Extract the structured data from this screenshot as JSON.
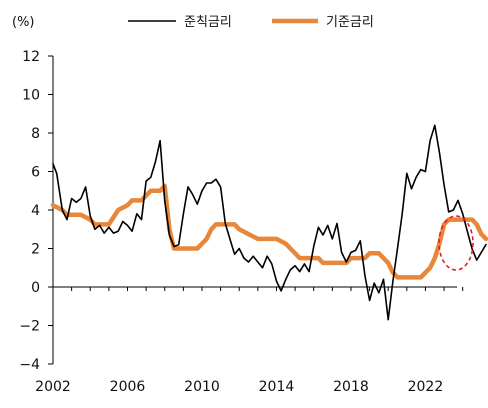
{
  "chart_data": {
    "type": "line",
    "unit_label": "(%)",
    "title": "",
    "xlabel": "",
    "ylabel": "",
    "ylim": [
      -4,
      12
    ],
    "yticks": [
      -4,
      -2,
      0,
      2,
      4,
      6,
      8,
      10,
      12
    ],
    "xlim": [
      2002,
      2024.5
    ],
    "xticks": [
      2002,
      2006,
      2010,
      2014,
      2018,
      2022
    ],
    "grid": false,
    "legend_position": "top",
    "annotation": "red dashed circle highlighting the latest values (2023-2024)",
    "series": [
      {
        "name": "준칙금리",
        "color": "#000000",
        "points": [
          [
            2002.0,
            6.4
          ],
          [
            2002.2,
            5.9
          ],
          [
            2002.5,
            4.0
          ],
          [
            2002.75,
            3.5
          ],
          [
            2003.0,
            4.6
          ],
          [
            2003.25,
            4.4
          ],
          [
            2003.5,
            4.6
          ],
          [
            2003.75,
            5.2
          ],
          [
            2004.0,
            3.7
          ],
          [
            2004.25,
            3.0
          ],
          [
            2004.5,
            3.2
          ],
          [
            2004.75,
            2.8
          ],
          [
            2005.0,
            3.1
          ],
          [
            2005.25,
            2.8
          ],
          [
            2005.5,
            2.9
          ],
          [
            2005.75,
            3.4
          ],
          [
            2006.0,
            3.2
          ],
          [
            2006.25,
            2.9
          ],
          [
            2006.5,
            3.8
          ],
          [
            2006.75,
            3.5
          ],
          [
            2007.0,
            5.5
          ],
          [
            2007.25,
            5.7
          ],
          [
            2007.5,
            6.5
          ],
          [
            2007.75,
            7.6
          ],
          [
            2008.0,
            4.5
          ],
          [
            2008.25,
            2.7
          ],
          [
            2008.5,
            2.1
          ],
          [
            2008.75,
            2.2
          ],
          [
            2009.0,
            3.8
          ],
          [
            2009.25,
            5.2
          ],
          [
            2009.5,
            4.8
          ],
          [
            2009.75,
            4.3
          ],
          [
            2010.0,
            5.0
          ],
          [
            2010.25,
            5.4
          ],
          [
            2010.5,
            5.4
          ],
          [
            2010.75,
            5.6
          ],
          [
            2011.0,
            5.2
          ],
          [
            2011.25,
            3.3
          ],
          [
            2011.5,
            2.5
          ],
          [
            2011.75,
            1.7
          ],
          [
            2012.0,
            2.0
          ],
          [
            2012.25,
            1.5
          ],
          [
            2012.5,
            1.3
          ],
          [
            2012.75,
            1.6
          ],
          [
            2013.0,
            1.3
          ],
          [
            2013.25,
            1.0
          ],
          [
            2013.5,
            1.6
          ],
          [
            2013.75,
            1.2
          ],
          [
            2014.0,
            0.3
          ],
          [
            2014.25,
            -0.2
          ],
          [
            2014.5,
            0.4
          ],
          [
            2014.75,
            0.9
          ],
          [
            2015.0,
            1.1
          ],
          [
            2015.25,
            0.8
          ],
          [
            2015.5,
            1.2
          ],
          [
            2015.75,
            0.8
          ],
          [
            2016.0,
            2.1
          ],
          [
            2016.25,
            3.1
          ],
          [
            2016.5,
            2.7
          ],
          [
            2016.75,
            3.2
          ],
          [
            2017.0,
            2.5
          ],
          [
            2017.25,
            3.3
          ],
          [
            2017.5,
            1.8
          ],
          [
            2017.75,
            1.3
          ],
          [
            2018.0,
            1.8
          ],
          [
            2018.25,
            1.9
          ],
          [
            2018.5,
            2.4
          ],
          [
            2018.75,
            0.6
          ],
          [
            2019.0,
            -0.7
          ],
          [
            2019.25,
            0.2
          ],
          [
            2019.5,
            -0.3
          ],
          [
            2019.75,
            0.4
          ],
          [
            2020.0,
            -1.7
          ],
          [
            2020.25,
            0.3
          ],
          [
            2020.5,
            2.0
          ],
          [
            2020.75,
            3.8
          ],
          [
            2021.0,
            5.9
          ],
          [
            2021.25,
            5.1
          ],
          [
            2021.5,
            5.7
          ],
          [
            2021.75,
            6.1
          ],
          [
            2022.0,
            6.0
          ],
          [
            2022.25,
            7.6
          ],
          [
            2022.5,
            8.4
          ],
          [
            2022.75,
            7.0
          ],
          [
            2023.0,
            5.3
          ],
          [
            2023.25,
            3.9
          ],
          [
            2023.5,
            4.0
          ],
          [
            2023.75,
            4.5
          ],
          [
            2024.0,
            3.8
          ],
          [
            2024.25,
            2.9
          ],
          [
            2024.5,
            2.0
          ],
          [
            2024.75,
            1.4
          ],
          [
            2025.0,
            1.8
          ],
          [
            2025.25,
            2.2
          ]
        ]
      },
      {
        "name": "기준금리",
        "color": "#e8873a",
        "points": [
          [
            2002.0,
            4.25
          ],
          [
            2002.5,
            4.0
          ],
          [
            2002.75,
            3.75
          ],
          [
            2003.25,
            3.75
          ],
          [
            2003.5,
            3.75
          ],
          [
            2004.0,
            3.5
          ],
          [
            2004.25,
            3.25
          ],
          [
            2005.0,
            3.25
          ],
          [
            2005.5,
            4.0
          ],
          [
            2006.0,
            4.25
          ],
          [
            2006.25,
            4.5
          ],
          [
            2006.75,
            4.5
          ],
          [
            2007.0,
            4.75
          ],
          [
            2007.25,
            5.0
          ],
          [
            2007.75,
            5.0
          ],
          [
            2008.0,
            5.25
          ],
          [
            2008.25,
            3.0
          ],
          [
            2008.5,
            2.0
          ],
          [
            2009.25,
            2.0
          ],
          [
            2009.75,
            2.0
          ],
          [
            2010.0,
            2.25
          ],
          [
            2010.25,
            2.5
          ],
          [
            2010.5,
            3.0
          ],
          [
            2010.75,
            3.25
          ],
          [
            2011.75,
            3.25
          ],
          [
            2012.0,
            3.0
          ],
          [
            2012.5,
            2.75
          ],
          [
            2013.0,
            2.5
          ],
          [
            2014.0,
            2.5
          ],
          [
            2014.5,
            2.25
          ],
          [
            2014.75,
            2.0
          ],
          [
            2015.0,
            1.75
          ],
          [
            2015.25,
            1.5
          ],
          [
            2016.25,
            1.5
          ],
          [
            2016.5,
            1.25
          ],
          [
            2017.75,
            1.25
          ],
          [
            2018.0,
            1.5
          ],
          [
            2018.75,
            1.5
          ],
          [
            2019.0,
            1.75
          ],
          [
            2019.5,
            1.75
          ],
          [
            2019.75,
            1.5
          ],
          [
            2020.0,
            1.25
          ],
          [
            2020.25,
            0.75
          ],
          [
            2020.5,
            0.5
          ],
          [
            2021.75,
            0.5
          ],
          [
            2022.0,
            0.75
          ],
          [
            2022.25,
            1.0
          ],
          [
            2022.5,
            1.5
          ],
          [
            2022.75,
            2.25
          ],
          [
            2023.0,
            3.25
          ],
          [
            2023.25,
            3.5
          ],
          [
            2024.5,
            3.5
          ],
          [
            2024.75,
            3.25
          ],
          [
            2025.0,
            2.75
          ],
          [
            2025.25,
            2.5
          ]
        ]
      }
    ]
  }
}
